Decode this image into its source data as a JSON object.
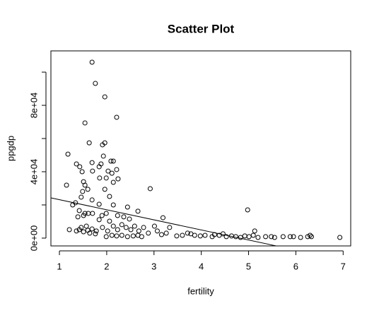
{
  "chart_data": {
    "type": "scatter",
    "title": "Scatter Plot",
    "x_label": "fertility",
    "y_label": "ppgdp",
    "xlim": [
      0.82,
      7.16
    ],
    "ylim": [
      -4700,
      112800
    ],
    "xticks": [
      1,
      2,
      3,
      4,
      5,
      6,
      7
    ],
    "yticks": [
      {
        "value": 0,
        "label": "0e+00"
      },
      {
        "value": 40000,
        "label": "4e+04"
      },
      {
        "value": 80000,
        "label": "8e+04"
      }
    ],
    "yminor": [
      20000,
      60000,
      100000
    ],
    "color": "#000000",
    "fit": {
      "intercept": 29240,
      "slope": -6079
    },
    "x": [
      1.69,
      1.76,
      1.96,
      2.21,
      1.54,
      1.63,
      1.96,
      1.91,
      1.18,
      1.93,
      2.09,
      2.14,
      1.36,
      1.43,
      1.88,
      1.84,
      1.69,
      1.48,
      1.7,
      2.03,
      2.11,
      2.21,
      1.99,
      2.24,
      1.85,
      1.15,
      1.51,
      1.54,
      2.14,
      2.92,
      1.96,
      1.49,
      1.6,
      1.46,
      2.06,
      1.69,
      1.34,
      1.28,
      1.84,
      2.14,
      2.44,
      1.42,
      1.54,
      1.61,
      1.7,
      1.99,
      2.66,
      4.98,
      1.39,
      1.51,
      1.9,
      2.23,
      3.19,
      2.36,
      2.48,
      1.84,
      2.06,
      1.21,
      1.42,
      1.51,
      1.6,
      1.46,
      1.57,
      1.69,
      1.78,
      1.91,
      2.02,
      2.14,
      2.23,
      2.32,
      2.41,
      2.51,
      2.59,
      2.68,
      2.78,
      2.88,
      3.01,
      3.07,
      3.16,
      3.26,
      3.33,
      1.99,
      2.11,
      2.21,
      2.32,
      2.44,
      2.56,
      2.66,
      2.74,
      3.48,
      3.6,
      3.71,
      3.78,
      3.86,
      3.98,
      4.08,
      4.23,
      4.28,
      4.38,
      4.46,
      4.53,
      4.64,
      4.73,
      4.83,
      4.92,
      5.01,
      5.1,
      5.13,
      5.2,
      5.36,
      5.48,
      5.55,
      5.73,
      5.88,
      5.95,
      6.1,
      6.25,
      6.33,
      6.3,
      6.93,
      1.36,
      1.64,
      1.76
    ],
    "y": [
      106000,
      93200,
      85100,
      72800,
      69400,
      57400,
      57400,
      56200,
      50600,
      49400,
      46400,
      46400,
      44700,
      43000,
      44700,
      43000,
      45500,
      40000,
      40400,
      40400,
      39100,
      41300,
      36200,
      35700,
      36200,
      31900,
      34000,
      31900,
      33600,
      29800,
      29400,
      28100,
      29400,
      24700,
      25100,
      23000,
      21300,
      20000,
      20400,
      20000,
      18700,
      16600,
      14900,
      14900,
      14900,
      14900,
      16200,
      17000,
      12800,
      13600,
      13600,
      13600,
      12300,
      12800,
      11500,
      11100,
      10200,
      5100,
      5100,
      3800,
      4700,
      6400,
      7200,
      5500,
      4300,
      6400,
      4300,
      7200,
      5100,
      8100,
      6400,
      5100,
      7200,
      4300,
      6400,
      3000,
      7200,
      4300,
      2100,
      3000,
      6400,
      900,
      1700,
      1300,
      1700,
      900,
      1300,
      1700,
      900,
      1300,
      1700,
      3000,
      2600,
      1700,
      1300,
      1700,
      900,
      2100,
      1700,
      2600,
      900,
      1300,
      900,
      400,
      1300,
      900,
      1700,
      4300,
      400,
      900,
      900,
      400,
      900,
      900,
      900,
      400,
      900,
      900,
      1700,
      400,
      4300,
      3000,
      2600
    ]
  }
}
